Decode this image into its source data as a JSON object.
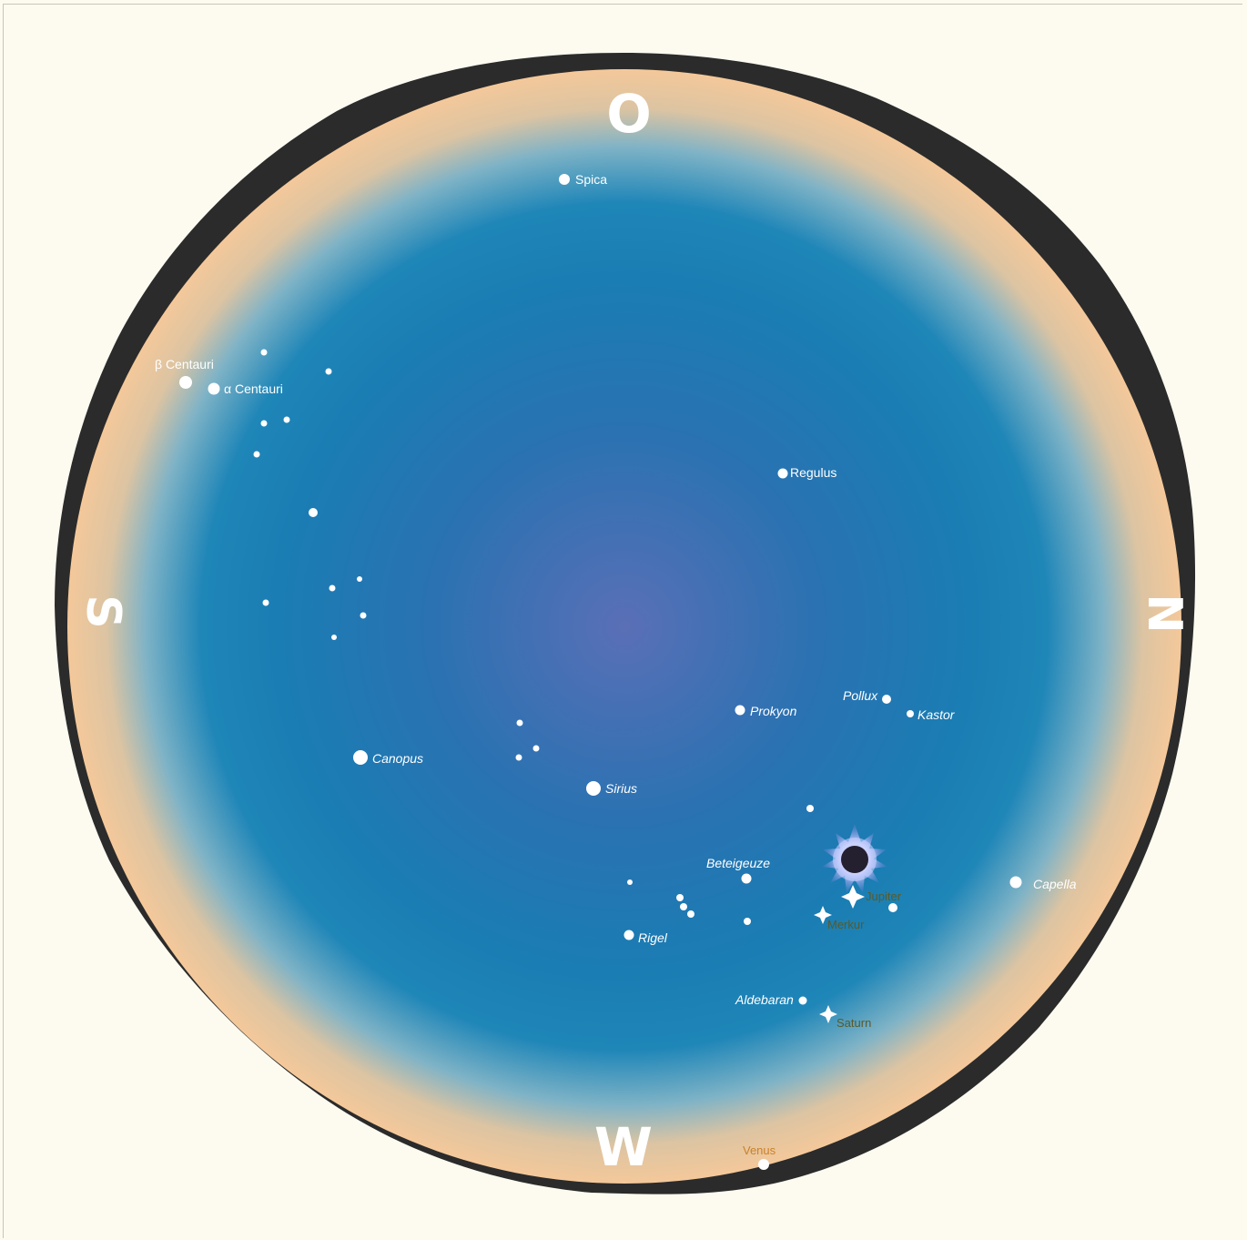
{
  "directions": {
    "top": "O",
    "left": "S",
    "right": "N",
    "bottom": "W"
  },
  "colors": {
    "sky_center": "#4f6fb4",
    "sky_main": "#1a7bb2",
    "horizon_glow": "#f2c69a",
    "rim": "#2b2b2b",
    "background": "#fdfbf0",
    "star": "#ffffff",
    "sun_corona": "#9aa7e8",
    "planet_label": "#5a5a2a",
    "venus_label": "#c9822b"
  },
  "labels": {
    "spica": "Spica",
    "beta_centauri": "β Centauri",
    "alpha_centauri": "α Centauri",
    "regulus": "Regulus",
    "pollux": "Pollux",
    "kastor": "Kastor",
    "prokyon": "Prokyon",
    "canopus": "Canopus",
    "sirius": "Sirius",
    "beteigeuze": "Beteigeuze",
    "capella": "Capella",
    "jupiter": "Jupiter",
    "merkur": "Merkur",
    "rigel": "Rigel",
    "aldebaran": "Aldebaran",
    "saturn": "Saturn",
    "venus": "Venus"
  },
  "icons": {
    "eclipsed_sun": "eclipsed-sun-icon",
    "planet": "four-point-star-icon"
  }
}
